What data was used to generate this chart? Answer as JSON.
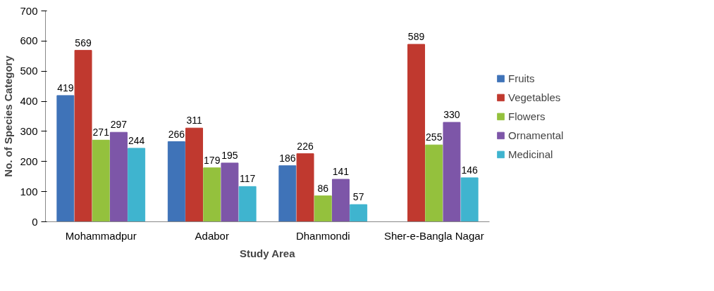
{
  "chart_data": {
    "type": "bar",
    "xlabel": "Study Area",
    "ylabel": "No. of Species Category",
    "categories": [
      "Mohammadpur",
      "Adabor",
      "Dhanmondi",
      "Sher-e-Bangla Nagar"
    ],
    "series": [
      {
        "name": "Fruits",
        "color": "#3f73b8",
        "values": [
          419,
          266,
          186,
          null
        ]
      },
      {
        "name": "Vegetables",
        "color": "#c0392f",
        "values": [
          569,
          311,
          226,
          589
        ]
      },
      {
        "name": "Flowers",
        "color": "#94c13d",
        "values": [
          271,
          179,
          86,
          255
        ]
      },
      {
        "name": "Ornamental",
        "color": "#7d56a8",
        "values": [
          297,
          195,
          141,
          330
        ]
      },
      {
        "name": "Medicinal",
        "color": "#3fb4cf",
        "values": [
          244,
          117,
          57,
          146
        ]
      }
    ],
    "ylim": [
      0,
      700
    ],
    "yticks": [
      0,
      100,
      200,
      300,
      400,
      500,
      600,
      700
    ],
    "data_labels": true,
    "legend": "right",
    "grid": false
  }
}
